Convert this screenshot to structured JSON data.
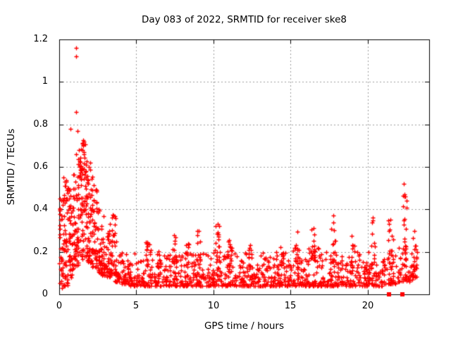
{
  "page": {
    "background": "#ffffff",
    "colors": {
      "marker": "#ff0000",
      "frame": "#000000",
      "grid": "#9c9c9c",
      "text": "#000000"
    }
  },
  "chart_data": {
    "type": "scatter",
    "title": "Day 083 of 2022, SRMTID for receiver ske8",
    "xlabel": "GPS time / hours",
    "ylabel": "SRMTID / TECUs",
    "xlim": [
      0,
      24
    ],
    "ylim": [
      0,
      1.2
    ],
    "xticks": {
      "values": [
        0,
        5,
        10,
        15,
        20
      ],
      "labels": [
        "0",
        "5",
        "10",
        "15",
        "20"
      ]
    },
    "yticks": {
      "values": [
        0,
        0.2,
        0.4,
        0.6,
        0.8,
        1.0,
        1.2
      ],
      "labels": [
        "0",
        "0.2",
        "0.4",
        "0.6",
        "0.8",
        "1",
        "1.2"
      ]
    },
    "grid": {
      "visible": true,
      "style": "dotted",
      "color": "#9c9c9c"
    },
    "legend": {
      "visible": false
    },
    "marker": {
      "shape": "plus",
      "size": 7,
      "color": "#ff0000"
    },
    "description": "Dense band of SRMTID values ~0.05-0.2 TECU all day; activity burst hours 0-4 peaking 1.16 near hour 1.1; evening cluster near hour 22.4 up to 0.52; two points at exactly 0 near hours 21.4 and 22.25.",
    "zero_markers": {
      "shape": "square",
      "size": 6,
      "x": [
        21.4,
        22.25
      ]
    },
    "generation": {
      "seed": 83,
      "bands": [
        [
          0.0,
          0.35,
          40,
          0.03,
          0.45,
          1.5
        ],
        [
          0.3,
          0.65,
          45,
          0.04,
          0.55,
          1.5
        ],
        [
          0.6,
          0.95,
          45,
          0.08,
          0.5,
          1.4
        ],
        [
          0.9,
          1.25,
          50,
          0.13,
          0.66,
          1.3
        ],
        [
          1.2,
          1.55,
          50,
          0.15,
          0.73,
          1.3
        ],
        [
          1.5,
          1.85,
          50,
          0.18,
          0.74,
          1.4
        ],
        [
          1.8,
          2.15,
          45,
          0.15,
          0.62,
          1.5
        ],
        [
          2.1,
          2.45,
          40,
          0.13,
          0.52,
          1.5
        ],
        [
          2.4,
          2.75,
          38,
          0.1,
          0.45,
          1.6
        ],
        [
          2.7,
          3.05,
          35,
          0.09,
          0.4,
          1.6
        ],
        [
          3.0,
          3.35,
          32,
          0.08,
          0.3,
          1.6
        ],
        [
          3.3,
          3.65,
          36,
          0.1,
          0.38,
          1.4
        ],
        [
          3.6,
          4.0,
          30,
          0.06,
          0.25,
          1.8
        ],
        [
          4.0,
          4.5,
          34,
          0.05,
          0.2,
          1.9
        ],
        [
          4.5,
          5.0,
          28,
          0.04,
          0.2,
          2.3
        ],
        [
          5.0,
          5.5,
          28,
          0.04,
          0.18,
          2.3
        ],
        [
          5.5,
          6.0,
          28,
          0.04,
          0.22,
          2.3
        ],
        [
          6.0,
          6.5,
          28,
          0.04,
          0.2,
          2.3
        ],
        [
          6.5,
          7.0,
          28,
          0.04,
          0.2,
          2.3
        ],
        [
          7.0,
          7.5,
          28,
          0.04,
          0.22,
          2.3
        ],
        [
          7.5,
          8.0,
          28,
          0.04,
          0.2,
          2.3
        ],
        [
          8.0,
          8.5,
          28,
          0.04,
          0.2,
          2.3
        ],
        [
          8.5,
          9.0,
          28,
          0.04,
          0.2,
          2.3
        ],
        [
          9.0,
          9.5,
          28,
          0.04,
          0.22,
          2.3
        ],
        [
          9.5,
          10.0,
          28,
          0.04,
          0.2,
          2.3
        ],
        [
          10.0,
          10.5,
          28,
          0.04,
          0.22,
          2.3
        ],
        [
          10.5,
          11.0,
          28,
          0.04,
          0.2,
          2.3
        ],
        [
          11.0,
          11.5,
          28,
          0.04,
          0.22,
          2.3
        ],
        [
          11.5,
          12.0,
          28,
          0.04,
          0.18,
          2.3
        ],
        [
          12.0,
          12.5,
          28,
          0.04,
          0.2,
          2.3
        ],
        [
          12.5,
          13.0,
          28,
          0.04,
          0.18,
          2.3
        ],
        [
          13.0,
          13.5,
          28,
          0.04,
          0.2,
          2.3
        ],
        [
          13.5,
          14.0,
          28,
          0.04,
          0.18,
          2.3
        ],
        [
          14.0,
          14.5,
          28,
          0.04,
          0.2,
          2.3
        ],
        [
          14.5,
          15.0,
          28,
          0.04,
          0.2,
          2.3
        ],
        [
          15.0,
          15.5,
          28,
          0.04,
          0.22,
          2.3
        ],
        [
          15.5,
          16.0,
          28,
          0.04,
          0.2,
          2.3
        ],
        [
          16.0,
          16.5,
          28,
          0.04,
          0.22,
          2.3
        ],
        [
          16.5,
          17.0,
          28,
          0.04,
          0.22,
          2.3
        ],
        [
          17.0,
          17.5,
          28,
          0.04,
          0.2,
          2.3
        ],
        [
          17.5,
          18.0,
          28,
          0.04,
          0.22,
          2.3
        ],
        [
          18.0,
          18.5,
          28,
          0.04,
          0.2,
          2.3
        ],
        [
          18.5,
          19.0,
          28,
          0.04,
          0.2,
          2.3
        ],
        [
          19.0,
          19.5,
          28,
          0.04,
          0.2,
          2.3
        ],
        [
          19.5,
          20.0,
          28,
          0.04,
          0.16,
          2.3
        ],
        [
          20.0,
          20.5,
          28,
          0.04,
          0.2,
          2.3
        ],
        [
          20.5,
          21.0,
          28,
          0.04,
          0.16,
          2.3
        ],
        [
          5.6,
          5.9,
          12,
          0.14,
          0.26,
          1.5
        ],
        [
          6.3,
          6.6,
          10,
          0.13,
          0.23,
          1.5
        ],
        [
          7.3,
          7.65,
          14,
          0.14,
          0.28,
          1.5
        ],
        [
          8.1,
          8.4,
          10,
          0.13,
          0.25,
          1.5
        ],
        [
          8.9,
          9.2,
          12,
          0.14,
          0.3,
          1.5
        ],
        [
          10.1,
          10.45,
          16,
          0.15,
          0.33,
          1.4
        ],
        [
          10.9,
          11.2,
          12,
          0.14,
          0.28,
          1.5
        ],
        [
          12.2,
          12.5,
          10,
          0.13,
          0.25,
          1.5
        ],
        [
          14.3,
          14.6,
          10,
          0.13,
          0.25,
          1.5
        ],
        [
          15.3,
          15.6,
          12,
          0.14,
          0.3,
          1.4
        ],
        [
          16.3,
          16.7,
          14,
          0.15,
          0.31,
          1.4
        ],
        [
          17.6,
          17.95,
          16,
          0.15,
          0.36,
          1.4
        ],
        [
          18.9,
          19.2,
          10,
          0.14,
          0.28,
          1.5
        ],
        [
          20.2,
          20.5,
          10,
          0.14,
          0.36,
          1.5
        ],
        [
          21.3,
          21.7,
          14,
          0.13,
          0.35,
          1.4
        ],
        [
          21.0,
          21.5,
          26,
          0.05,
          0.2,
          2.0
        ],
        [
          21.5,
          22.0,
          26,
          0.05,
          0.2,
          2.0
        ],
        [
          22.0,
          22.5,
          26,
          0.06,
          0.25,
          2.0
        ],
        [
          22.5,
          23.0,
          24,
          0.06,
          0.22,
          2.0
        ],
        [
          23.0,
          23.25,
          14,
          0.08,
          0.25,
          2.0
        ],
        [
          22.3,
          22.55,
          16,
          0.15,
          0.47,
          1.2
        ],
        [
          22.95,
          23.2,
          10,
          0.12,
          0.3,
          1.5
        ]
      ],
      "outliers": [
        [
          1.08,
          1.16
        ],
        [
          1.08,
          1.12
        ],
        [
          1.1,
          0.86
        ],
        [
          0.74,
          0.78
        ],
        [
          1.2,
          0.77
        ],
        [
          0.28,
          0.55
        ],
        [
          0.38,
          0.53
        ],
        [
          0.05,
          0.4
        ],
        [
          0.1,
          0.35
        ],
        [
          1.62,
          0.72
        ],
        [
          1.55,
          0.7
        ],
        [
          2.0,
          0.62
        ],
        [
          3.5,
          0.37
        ],
        [
          9.05,
          0.3
        ],
        [
          10.3,
          0.33
        ],
        [
          16.5,
          0.31
        ],
        [
          17.8,
          0.37
        ],
        [
          20.35,
          0.36
        ],
        [
          21.5,
          0.35
        ],
        [
          22.35,
          0.52
        ],
        [
          22.38,
          0.47
        ],
        [
          22.45,
          0.46
        ],
        [
          22.52,
          0.44
        ],
        [
          23.05,
          0.3
        ]
      ]
    }
  }
}
